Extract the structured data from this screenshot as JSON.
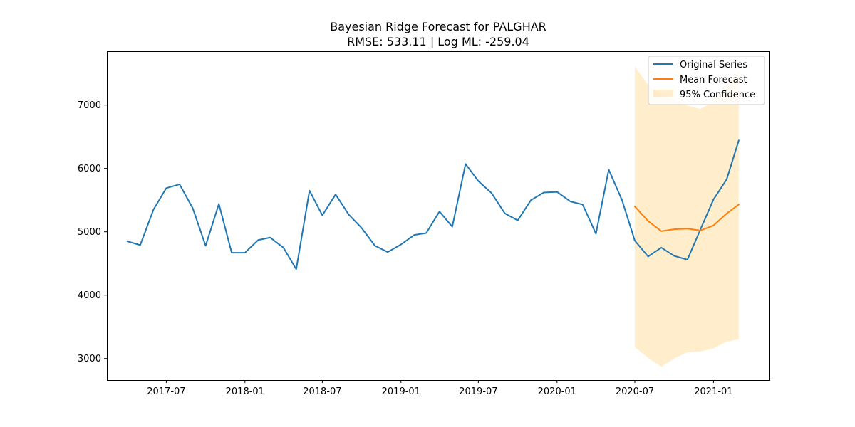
{
  "chart_data": {
    "type": "line",
    "title": "Bayesian Ridge Forecast for PALGHAR",
    "subtitle": "RMSE: 533.11 | Log ML: -259.04",
    "xlabel": "",
    "ylabel": "",
    "x_range": [
      "2017-02-12",
      "2021-05-12"
    ],
    "ylim": [
      2660,
      7850
    ],
    "x_ticks": [
      {
        "date": "2017-07-01",
        "label": "2017-07"
      },
      {
        "date": "2018-01-01",
        "label": "2018-01"
      },
      {
        "date": "2018-07-01",
        "label": "2018-07"
      },
      {
        "date": "2019-01-01",
        "label": "2019-01"
      },
      {
        "date": "2019-07-01",
        "label": "2019-07"
      },
      {
        "date": "2020-01-01",
        "label": "2020-01"
      },
      {
        "date": "2020-07-01",
        "label": "2020-07"
      },
      {
        "date": "2021-01-01",
        "label": "2021-01"
      }
    ],
    "y_ticks": [
      3000,
      4000,
      5000,
      6000,
      7000
    ],
    "grid": false,
    "legend_position": "top-right",
    "series": [
      {
        "name": "Original Series",
        "color": "#1f77b4",
        "kind": "line",
        "x": [
          "2017-04-01",
          "2017-05-01",
          "2017-06-01",
          "2017-07-01",
          "2017-08-01",
          "2017-09-01",
          "2017-10-01",
          "2017-11-01",
          "2017-12-01",
          "2018-01-01",
          "2018-02-01",
          "2018-03-01",
          "2018-04-01",
          "2018-05-01",
          "2018-06-01",
          "2018-07-01",
          "2018-08-01",
          "2018-09-01",
          "2018-10-01",
          "2018-11-01",
          "2018-12-01",
          "2019-01-01",
          "2019-02-01",
          "2019-03-01",
          "2019-04-01",
          "2019-05-01",
          "2019-06-01",
          "2019-07-01",
          "2019-08-01",
          "2019-09-01",
          "2019-10-01",
          "2019-11-01",
          "2019-12-01",
          "2020-01-01",
          "2020-02-01",
          "2020-03-01",
          "2020-04-01",
          "2020-05-01",
          "2020-06-01",
          "2020-07-01",
          "2020-08-01",
          "2020-09-01",
          "2020-10-01",
          "2020-11-01",
          "2020-12-01",
          "2021-01-01",
          "2021-02-01",
          "2021-03-01"
        ],
        "values": [
          4850,
          4790,
          5350,
          5690,
          5750,
          5370,
          4780,
          5440,
          4670,
          4670,
          4870,
          4910,
          4750,
          4410,
          5650,
          5260,
          5590,
          5270,
          5060,
          4780,
          4680,
          4800,
          4950,
          4980,
          5320,
          5080,
          6070,
          5800,
          5610,
          5290,
          5180,
          5500,
          5620,
          5630,
          5480,
          5430,
          4970,
          5980,
          5500,
          4860,
          4610,
          4750,
          4620,
          4560,
          5030,
          5510,
          5830,
          6440
        ]
      },
      {
        "name": "Mean Forecast",
        "color": "#ff7f0e",
        "kind": "line",
        "x": [
          "2020-07-01",
          "2020-08-01",
          "2020-09-01",
          "2020-10-01",
          "2020-11-01",
          "2020-12-01",
          "2021-01-01",
          "2021-02-01",
          "2021-03-01"
        ],
        "values": [
          5400,
          5170,
          5010,
          5040,
          5050,
          5020,
          5100,
          5290,
          5430
        ]
      },
      {
        "name": "95% Confidence",
        "color": "#ffa500",
        "kind": "band",
        "x": [
          "2020-07-01",
          "2020-08-01",
          "2020-09-01",
          "2020-10-01",
          "2020-11-01",
          "2020-12-01",
          "2021-01-01",
          "2021-02-01",
          "2021-03-01"
        ],
        "lower": [
          3180,
          3010,
          2870,
          3000,
          3100,
          3110,
          3160,
          3270,
          3300
        ],
        "upper": [
          7610,
          7320,
          7150,
          7090,
          6990,
          6940,
          7050,
          7310,
          7560
        ]
      }
    ]
  }
}
